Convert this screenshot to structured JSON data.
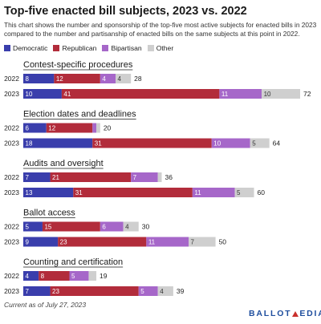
{
  "title": "Top-five enacted bill subjects, 2023 vs. 2022",
  "subtitle": "This chart shows the number and sponsorship of the top-five most active subjects for enacted bills in 2023 compared to the number and partisanship of enacted bills on the same subjects at this point in 2022.",
  "legend": [
    {
      "label": "Democratic",
      "color": "#3a3eac"
    },
    {
      "label": "Republican",
      "color": "#b22c3b"
    },
    {
      "label": "Bipartisan",
      "color": "#a667c9"
    },
    {
      "label": "Other",
      "color": "#cfcfcf"
    }
  ],
  "chart_data": {
    "type": "bar",
    "orientation": "horizontal",
    "stacked": true,
    "series_names": [
      "Democratic",
      "Republican",
      "Bipartisan",
      "Other"
    ],
    "colors": [
      "#3a3eac",
      "#b22c3b",
      "#a667c9",
      "#cfcfcf"
    ],
    "groups": [
      {
        "subject": "Contest-specific procedures",
        "rows": [
          {
            "year": "2022",
            "values": [
              8,
              12,
              4,
              4
            ],
            "total": 28
          },
          {
            "year": "2023",
            "values": [
              10,
              41,
              11,
              10
            ],
            "total": 72
          }
        ]
      },
      {
        "subject": "Election dates and deadlines",
        "rows": [
          {
            "year": "2022",
            "values": [
              6,
              12,
              1,
              1
            ],
            "total": 20
          },
          {
            "year": "2023",
            "values": [
              18,
              31,
              10,
              5
            ],
            "total": 64
          }
        ]
      },
      {
        "subject": "Audits and oversight",
        "rows": [
          {
            "year": "2022",
            "values": [
              7,
              21,
              7,
              1
            ],
            "total": 36
          },
          {
            "year": "2023",
            "values": [
              13,
              31,
              11,
              5
            ],
            "total": 60
          }
        ]
      },
      {
        "subject": "Ballot access",
        "rows": [
          {
            "year": "2022",
            "values": [
              5,
              15,
              6,
              4
            ],
            "total": 30
          },
          {
            "year": "2023",
            "values": [
              9,
              23,
              11,
              7
            ],
            "total": 50
          }
        ]
      },
      {
        "subject": "Counting and certification",
        "rows": [
          {
            "year": "2022",
            "values": [
              4,
              8,
              5,
              2
            ],
            "total": 19
          },
          {
            "year": "2023",
            "values": [
              7,
              23,
              5,
              4
            ],
            "total": 39
          }
        ]
      }
    ],
    "xlim": [
      0,
      72
    ]
  },
  "footer": {
    "note": "Current as of July 27, 2023",
    "logo_left": "BALLOT",
    "logo_right": "EDIA"
  }
}
